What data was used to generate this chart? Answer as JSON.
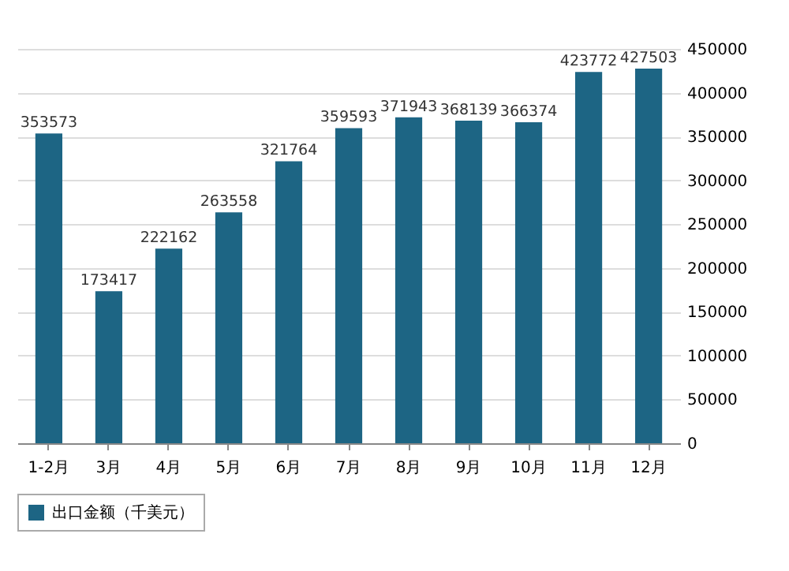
{
  "chart_data": {
    "type": "bar",
    "categories": [
      "1-2月",
      "3月",
      "4月",
      "5月",
      "6月",
      "7月",
      "8月",
      "9月",
      "10月",
      "11月",
      "12月"
    ],
    "series": [
      {
        "name": "出口金额（千美元）",
        "color": "#1d6584",
        "values": [
          353573,
          173417,
          222162,
          263558,
          321764,
          359593,
          371943,
          368139,
          366374,
          423772,
          427503
        ]
      }
    ],
    "ylim": [
      0,
      450000
    ],
    "yticks": [
      0,
      50000,
      100000,
      150000,
      200000,
      250000,
      300000,
      350000,
      400000,
      450000
    ],
    "grid": "y",
    "legend": "bottom",
    "data_labels": true
  }
}
